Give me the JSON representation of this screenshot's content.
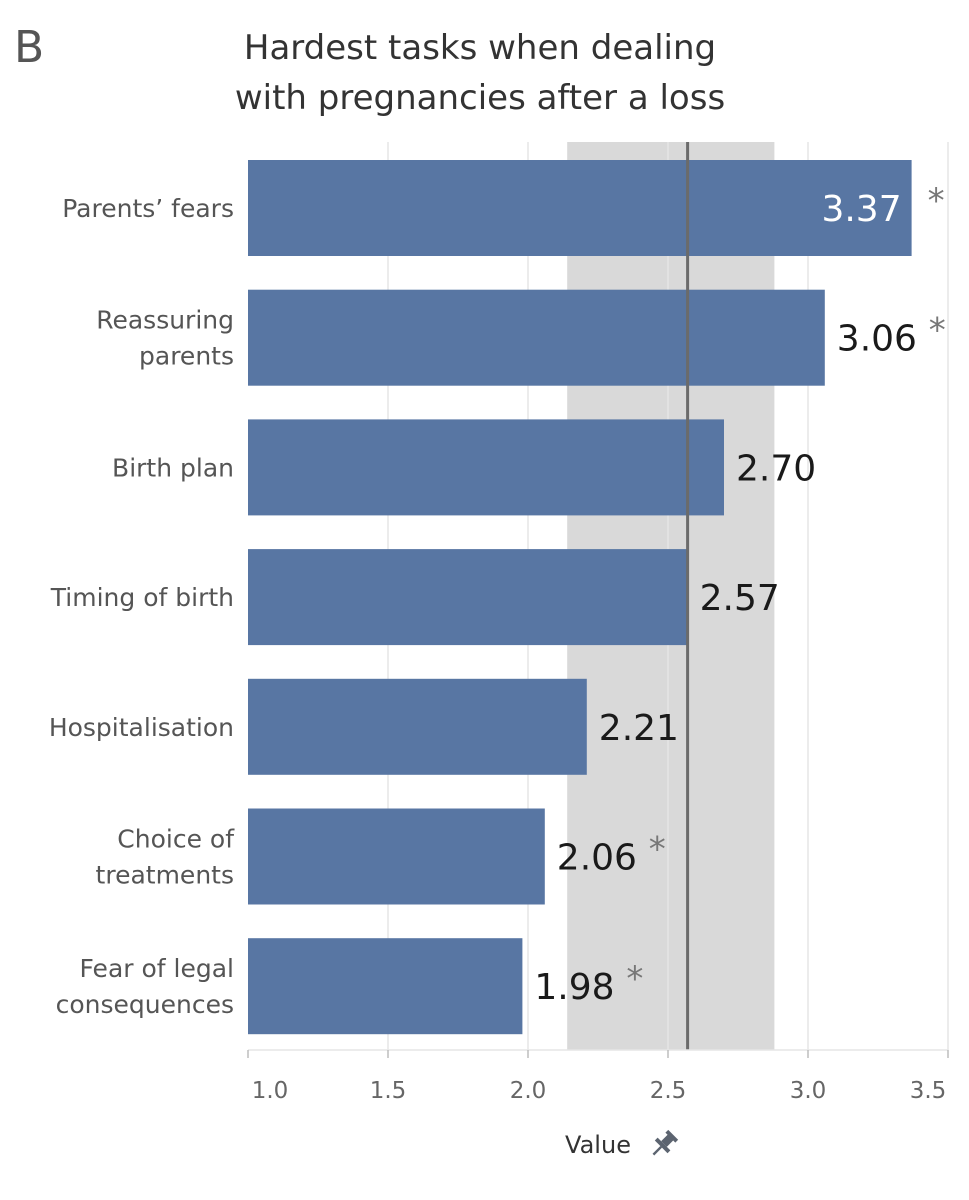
{
  "panel_label": "B",
  "chart_data": {
    "type": "bar",
    "orientation": "horizontal",
    "title_lines": [
      "Hardest tasks when dealing",
      "with pregnancies after a loss"
    ],
    "categories": [
      [
        "Parents’ fears"
      ],
      [
        "Reassuring",
        "parents"
      ],
      [
        "Birth plan"
      ],
      [
        "Timing of birth"
      ],
      [
        "Hospitalisation"
      ],
      [
        "Choice of",
        "treatments"
      ],
      [
        "Fear of legal",
        "consequences"
      ]
    ],
    "values": [
      3.37,
      3.06,
      2.7,
      2.57,
      2.21,
      2.06,
      1.98
    ],
    "value_labels": [
      "3.37",
      "3.06",
      "2.70",
      "2.57",
      "2.21",
      "2.06",
      "1.98"
    ],
    "significant": [
      true,
      true,
      false,
      false,
      false,
      true,
      true
    ],
    "significance_marker": "*",
    "xlim": [
      1.0,
      3.5
    ],
    "xticks": [
      1.0,
      1.5,
      2.0,
      2.5,
      3.0,
      3.5
    ],
    "xtick_labels": [
      "1.0",
      "1.5",
      "2.0",
      "2.5",
      "3.0",
      "3.5"
    ],
    "xlabel": "Value",
    "reference_line": 2.57,
    "reference_band": [
      2.14,
      2.88
    ],
    "colors": {
      "bar": "#5876a3",
      "band": "#d9d9d9",
      "reference_line": "#6b6b6b",
      "grid": "#e6e6e6",
      "label_inside": "#ffffff",
      "label_outside": "#1a1a1a",
      "asterisk": "#777777",
      "category_text": "#555555",
      "tick_text": "#666666",
      "xlabel_text": "#333333",
      "pin_icon": "#5c6470"
    }
  }
}
